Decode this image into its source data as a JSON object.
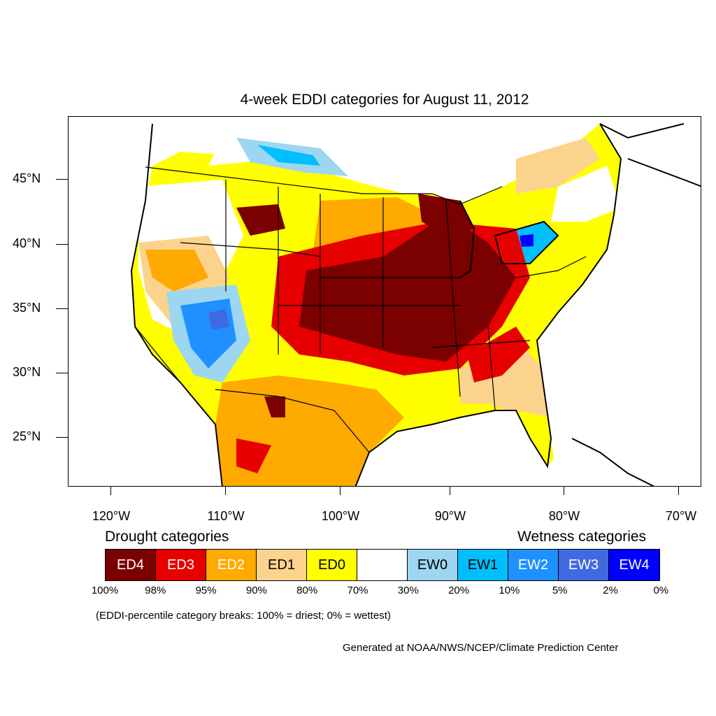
{
  "title": "4-week EDDI categories for August 11, 2012",
  "map": {
    "latitude_labels": [
      "45°N",
      "40°N",
      "35°N",
      "30°N",
      "25°N"
    ],
    "longitude_labels": [
      "120°W",
      "110°W",
      "100°W",
      "90°W",
      "80°W",
      "70°W"
    ]
  },
  "legend": {
    "drought_heading": "Drought categories",
    "wetness_heading": "Wetness categories",
    "categories": [
      {
        "label": "ED4",
        "color": "#7b0000",
        "text_color": "#ffffff"
      },
      {
        "label": "ED3",
        "color": "#e60000",
        "text_color": "#ffffff"
      },
      {
        "label": "ED2",
        "color": "#ffaa00",
        "text_color": "#ffffff"
      },
      {
        "label": "ED1",
        "color": "#fcd38c",
        "text_color": "#000000"
      },
      {
        "label": "ED0",
        "color": "#ffff00",
        "text_color": "#000000"
      },
      {
        "label": "",
        "color": "#ffffff",
        "text_color": "#000000"
      },
      {
        "label": "EW0",
        "color": "#9dd6f0",
        "text_color": "#000000"
      },
      {
        "label": "EW1",
        "color": "#00bfff",
        "text_color": "#000000"
      },
      {
        "label": "EW2",
        "color": "#1e90ff",
        "text_color": "#ffffff"
      },
      {
        "label": "EW3",
        "color": "#4169e1",
        "text_color": "#ffffff"
      },
      {
        "label": "EW4",
        "color": "#0000ff",
        "text_color": "#ffffff"
      }
    ],
    "breaks": [
      "100%",
      "98%",
      "95%",
      "90%",
      "80%",
      "70%",
      "30%",
      "20%",
      "10%",
      "5%",
      "2%",
      "0%"
    ]
  },
  "note": "(EDDI-percentile category breaks: 100% = driest; 0% = wettest)",
  "credit": "Generated at NOAA/NWS/NCEP/Climate Prediction Center"
}
